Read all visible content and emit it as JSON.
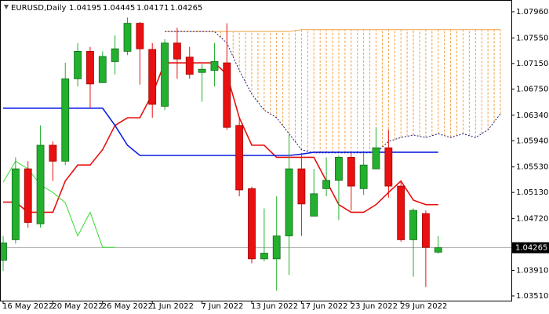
{
  "chart_data": {
    "type": "candlestick",
    "title": "EURUSD,Daily",
    "header_values": [
      1.04195,
      1.04445,
      1.04171,
      1.04265
    ],
    "categories": [
      "16 May 2022",
      null,
      null,
      null,
      "20 May 2022",
      null,
      null,
      null,
      "26 May 2022",
      null,
      null,
      null,
      "1 Jun 2022",
      null,
      null,
      null,
      "7 Jun 2022",
      null,
      null,
      null,
      "13 Jun 2022",
      null,
      null,
      null,
      "17 Jun 2022",
      null,
      null,
      null,
      "23 Jun 2022",
      null,
      null,
      null,
      "29 Jun 2022",
      null,
      null,
      null
    ],
    "open": [
      1.0407,
      1.0439,
      1.055,
      1.0464,
      1.0587,
      1.0562,
      1.0691,
      1.0734,
      1.0685,
      1.0718,
      1.0734,
      1.0778,
      1.0737,
      1.0648,
      1.0747,
      1.0725,
      1.0701,
      1.0704,
      1.0716,
      1.0618,
      1.0519,
      1.0409,
      1.0409,
      1.0445,
      1.055,
      1.0476,
      1.0519,
      1.0532,
      1.0568,
      1.0519,
      1.055,
      1.0583,
      1.0523,
      1.0439,
      1.048,
      1.04195
    ],
    "high": [
      1.0445,
      1.0568,
      1.0562,
      1.0618,
      1.0593,
      1.0716,
      1.0747,
      1.0741,
      1.0734,
      1.0759,
      1.0787,
      1.078,
      1.0747,
      1.0753,
      1.0771,
      1.0741,
      1.0714,
      1.0747,
      1.0778,
      1.063,
      1.0522,
      1.0488,
      1.0507,
      1.0603,
      1.0575,
      1.055,
      1.0568,
      1.0571,
      1.0575,
      1.0575,
      1.0615,
      1.0611,
      1.0532,
      1.0488,
      1.0485,
      1.04445
    ],
    "low": [
      1.039,
      1.0433,
      1.0458,
      1.0458,
      1.0531,
      1.0556,
      1.0679,
      1.0645,
      1.0685,
      1.0698,
      1.0728,
      1.0682,
      1.063,
      1.0642,
      1.0691,
      1.0691,
      1.0655,
      1.0679,
      1.0611,
      1.0507,
      1.0402,
      1.0405,
      1.0359,
      1.0384,
      1.0445,
      1.0476,
      1.0507,
      1.047,
      1.0485,
      1.0509,
      1.055,
      1.0505,
      1.0436,
      1.0381,
      1.0365,
      1.04171
    ],
    "close": [
      1.0434,
      1.055,
      1.0466,
      1.0587,
      1.0562,
      1.0691,
      1.0734,
      1.0683,
      1.0726,
      1.0738,
      1.0778,
      1.0738,
      1.0651,
      1.0747,
      1.0722,
      1.0698,
      1.0706,
      1.0718,
      1.0615,
      1.0517,
      1.0409,
      1.0418,
      1.0445,
      1.055,
      1.0495,
      1.0511,
      1.0532,
      1.0568,
      1.0523,
      1.0556,
      1.0583,
      1.0523,
      1.0439,
      1.0485,
      1.0427,
      1.04265
    ],
    "up_color": "#22b02e",
    "down_color": "#e81010",
    "lines": [
      {
        "color": "#e81010",
        "x": [
          0,
          1,
          2,
          3,
          4,
          5,
          6,
          7,
          8,
          9,
          10,
          11,
          12,
          13,
          14,
          15,
          16,
          17,
          18,
          19,
          20,
          21,
          22,
          23,
          24,
          25,
          26,
          27,
          28,
          29,
          30,
          31,
          32,
          33,
          34,
          35
        ],
        "values": [
          1.0498,
          1.0498,
          1.0482,
          1.0482,
          1.0482,
          1.0531,
          1.0556,
          1.0556,
          1.058,
          1.0618,
          1.063,
          1.063,
          1.0667,
          1.0716,
          1.0716,
          1.0716,
          1.0716,
          1.0716,
          1.0698,
          1.063,
          1.0587,
          1.0587,
          1.0568,
          1.0568,
          1.0568,
          1.0568,
          1.0531,
          1.0494,
          1.0482,
          1.0482,
          1.0494,
          1.0513,
          1.0531,
          1.0501,
          1.0494,
          1.0494
        ]
      },
      {
        "color": "#0a1ee6",
        "x": [
          0,
          1,
          2,
          3,
          4,
          5,
          6,
          7,
          8,
          9,
          10,
          11,
          12,
          13,
          14,
          15,
          16,
          17,
          18,
          19,
          20,
          21,
          22,
          23,
          24,
          25,
          26,
          27,
          28,
          29,
          30,
          31,
          32,
          33,
          34,
          35
        ],
        "values": [
          1.0645,
          1.0645,
          1.0645,
          1.0645,
          1.0645,
          1.0645,
          1.0645,
          1.0645,
          1.0645,
          1.0618,
          1.0587,
          1.0571,
          1.0571,
          1.0571,
          1.0571,
          1.0571,
          1.0571,
          1.0571,
          1.0571,
          1.0571,
          1.0571,
          1.0571,
          1.0571,
          1.0571,
          1.0573,
          1.0576,
          1.0576,
          1.0576,
          1.0576,
          1.0576,
          1.0576,
          1.0576,
          1.0576,
          1.0576,
          1.0576,
          1.0576
        ]
      },
      {
        "color": "#33dd33",
        "x": [
          0,
          1,
          2,
          3,
          4,
          5,
          6,
          7,
          8,
          9
        ],
        "values": [
          1.0529,
          1.0562,
          1.055,
          1.0525,
          1.0513,
          1.0497,
          1.0445,
          1.0482,
          1.0427,
          1.0427
        ]
      }
    ],
    "cloud": {
      "color": "#f0a040",
      "edge_color": "#1a1a80",
      "x": [
        13,
        14,
        15,
        16,
        17,
        18,
        19,
        20,
        21,
        22,
        23,
        24,
        25,
        26,
        27,
        28,
        29,
        30,
        31,
        32,
        33,
        34,
        35,
        36,
        37,
        38,
        39,
        40
      ],
      "span_a": [
        1.0765,
        1.0765,
        1.0765,
        1.0765,
        1.0765,
        1.0747,
        1.0704,
        1.0667,
        1.0642,
        1.063,
        1.0605,
        1.058,
        1.0575,
        1.0575,
        1.0575,
        1.0575,
        1.0575,
        1.0575,
        1.0593,
        1.0599,
        1.0603,
        1.0599,
        1.0605,
        1.0599,
        1.0605,
        1.0599,
        1.0611,
        1.0636
      ],
      "span_b": [
        1.0765,
        1.0765,
        1.0765,
        1.0765,
        1.0765,
        1.0765,
        1.0765,
        1.0765,
        1.0765,
        1.0765,
        1.0765,
        1.0768,
        1.0768,
        1.0768,
        1.0768,
        1.0768,
        1.0768,
        1.0768,
        1.0768,
        1.0768,
        1.0768,
        1.0768,
        1.0768,
        1.0768,
        1.0768,
        1.0768,
        1.0768,
        1.0768
      ]
    },
    "current_price": 1.04265,
    "ylim": [
      1.03436,
      1.08144
    ],
    "yticks": [
      {
        "value": 1.0796,
        "label": "1.07960"
      },
      {
        "value": 1.0755,
        "label": "1.07550"
      },
      {
        "value": 1.0715,
        "label": "1.07150"
      },
      {
        "value": 1.0675,
        "label": "1.06750"
      },
      {
        "value": 1.0634,
        "label": "1.06340"
      },
      {
        "value": 1.0594,
        "label": "1.05940"
      },
      {
        "value": 1.0553,
        "label": "1.05530"
      },
      {
        "value": 1.0513,
        "label": "1.05130"
      },
      {
        "value": 1.0472,
        "label": "1.04720"
      },
      {
        "value": 1.0391,
        "label": "1.03910"
      },
      {
        "value": 1.0351,
        "label": "1.03510"
      }
    ]
  }
}
